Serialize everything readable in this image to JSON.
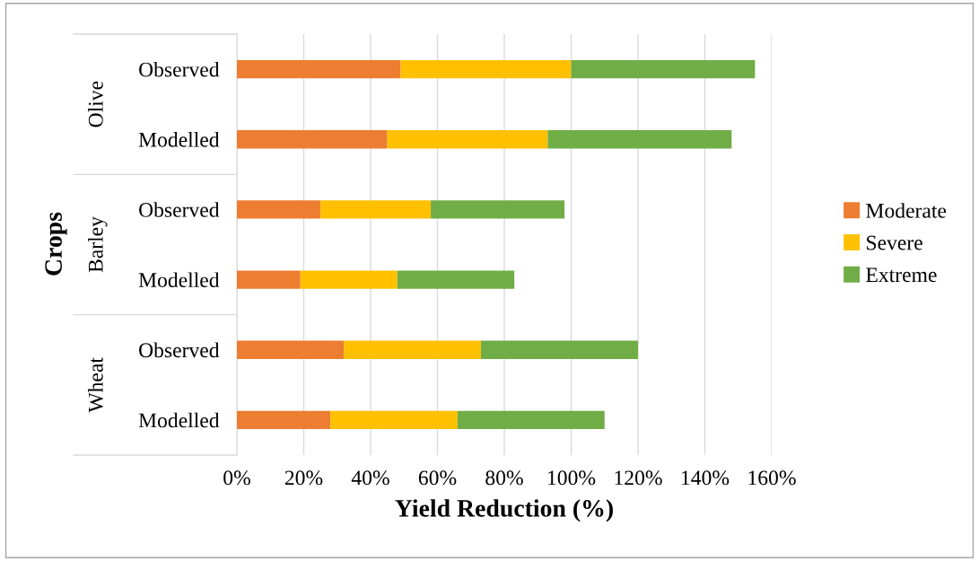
{
  "chart_data": {
    "type": "bar",
    "orientation": "horizontal",
    "stacked": true,
    "categories": [
      "Observed",
      "Modelled",
      "Observed",
      "Modelled",
      "Observed",
      "Modelled"
    ],
    "annotations": [
      "Olive",
      "Barley",
      "Wheat"
    ],
    "ylabel": "Crops",
    "xlabel": "Yield Reduction (%)",
    "series": [
      {
        "name": "Moderate",
        "color": "#ed7d31",
        "values": [
          49,
          45,
          25,
          19,
          32,
          28
        ]
      },
      {
        "name": "Severe",
        "color": "#ffc000",
        "values": [
          51,
          48,
          33,
          29,
          41,
          38
        ]
      },
      {
        "name": "Extreme",
        "color": "#70ad47",
        "values": [
          55,
          55,
          40,
          35,
          47,
          44
        ]
      }
    ],
    "xlim": [
      0,
      160
    ],
    "xticks": [
      {
        "value": 0,
        "label": "0%"
      },
      {
        "value": 20,
        "label": "20%"
      },
      {
        "value": 40,
        "label": "40%"
      },
      {
        "value": 60,
        "label": "60%"
      },
      {
        "value": 80,
        "label": "80%"
      },
      {
        "value": 100,
        "label": "100%"
      },
      {
        "value": 120,
        "label": "120%"
      },
      {
        "value": 140,
        "label": "140%"
      },
      {
        "value": 160,
        "label": "160%"
      }
    ],
    "grid": "x",
    "legend": "right"
  }
}
